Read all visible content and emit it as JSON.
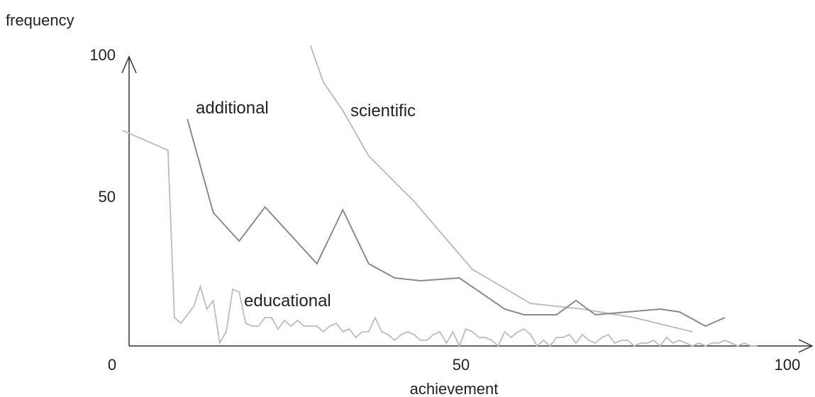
{
  "chart_data": {
    "type": "line",
    "xlabel": "achievement",
    "ylabel": "frequency",
    "xlim": [
      0,
      100
    ],
    "ylim": [
      0,
      100
    ],
    "x_ticks": [
      "0",
      "50",
      "100"
    ],
    "y_ticks": [
      "50",
      "100"
    ],
    "grid": false,
    "legend": "inline labels",
    "series": [
      {
        "name": "scientific",
        "color": "#b8b8b8",
        "points": [
          [
            28,
            106
          ],
          [
            30,
            93
          ],
          [
            33,
            83
          ],
          [
            37,
            67
          ],
          [
            44,
            51
          ],
          [
            53,
            27
          ],
          [
            62,
            15
          ],
          [
            70,
            13
          ],
          [
            78,
            10
          ],
          [
            87,
            5
          ]
        ]
      },
      {
        "name": "additional",
        "color": "#8a8a8a",
        "points": [
          [
            9,
            80
          ],
          [
            13,
            47
          ],
          [
            17,
            37
          ],
          [
            21,
            49
          ],
          [
            29,
            29
          ],
          [
            33,
            48
          ],
          [
            37,
            29
          ],
          [
            41,
            24
          ],
          [
            45,
            23
          ],
          [
            51,
            24
          ],
          [
            58,
            13
          ],
          [
            61,
            11
          ],
          [
            66,
            11
          ],
          [
            69,
            16
          ],
          [
            72,
            11
          ],
          [
            82,
            13
          ],
          [
            85,
            12
          ],
          [
            89,
            7
          ],
          [
            92,
            10
          ]
        ]
      },
      {
        "name": "educational",
        "color": "#bcbcbc",
        "points": [
          [
            -1,
            76
          ],
          [
            6,
            69
          ],
          [
            7,
            10
          ],
          [
            8,
            8
          ],
          [
            10,
            14
          ],
          [
            11,
            21
          ],
          [
            12,
            13
          ],
          [
            13,
            16
          ],
          [
            14,
            1
          ],
          [
            15,
            5
          ],
          [
            16,
            20
          ],
          [
            17,
            19
          ],
          [
            18,
            8
          ],
          [
            19,
            7
          ],
          [
            20,
            7
          ],
          [
            21,
            10
          ],
          [
            22,
            10
          ],
          [
            23,
            6
          ],
          [
            24,
            9
          ],
          [
            25,
            7
          ],
          [
            26,
            9
          ],
          [
            27,
            7
          ],
          [
            28,
            7
          ],
          [
            29,
            7
          ],
          [
            30,
            5
          ],
          [
            31,
            7
          ],
          [
            32,
            8
          ],
          [
            33,
            5
          ],
          [
            34,
            6
          ],
          [
            35,
            3
          ],
          [
            36,
            5
          ],
          [
            37,
            5
          ],
          [
            38,
            10
          ],
          [
            39,
            5
          ],
          [
            40,
            4
          ],
          [
            41,
            2
          ],
          [
            42,
            4
          ],
          [
            43,
            5
          ],
          [
            44,
            4
          ],
          [
            45,
            2
          ],
          [
            46,
            2
          ],
          [
            47,
            4
          ],
          [
            48,
            5
          ],
          [
            49,
            1
          ],
          [
            50,
            5
          ],
          [
            51,
            0
          ],
          [
            52,
            6
          ],
          [
            53,
            5
          ],
          [
            54,
            3
          ],
          [
            55,
            3
          ],
          [
            56,
            2
          ],
          [
            57,
            0
          ],
          [
            58,
            5
          ],
          [
            59,
            3
          ],
          [
            60,
            5
          ],
          [
            61,
            6
          ],
          [
            62,
            4
          ],
          [
            63,
            0
          ],
          [
            64,
            2
          ],
          [
            65,
            0
          ],
          [
            66,
            3
          ],
          [
            67,
            3
          ],
          [
            68,
            4
          ],
          [
            69,
            1
          ],
          [
            70,
            4
          ],
          [
            71,
            2
          ],
          [
            72,
            1
          ],
          [
            73,
            3
          ],
          [
            74,
            4
          ],
          [
            75,
            1
          ],
          [
            76,
            2
          ],
          [
            77,
            2
          ],
          [
            78,
            0
          ],
          [
            79,
            1
          ],
          [
            80,
            1
          ],
          [
            81,
            2
          ],
          [
            82,
            0
          ],
          [
            83,
            3
          ],
          [
            84,
            1
          ],
          [
            85,
            2
          ],
          [
            86,
            1
          ],
          [
            87,
            0
          ],
          [
            88,
            1
          ],
          [
            89,
            0
          ],
          [
            90,
            1
          ],
          [
            91,
            1
          ],
          [
            92,
            2
          ],
          [
            93,
            1
          ],
          [
            94,
            0
          ],
          [
            95,
            1
          ],
          [
            96,
            0
          ],
          [
            97,
            0
          ]
        ]
      }
    ]
  }
}
